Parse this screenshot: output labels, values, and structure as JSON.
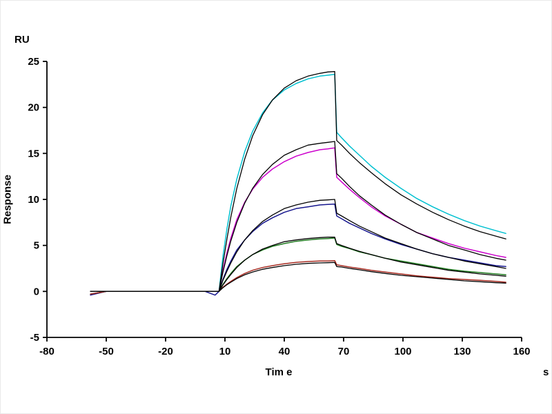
{
  "page": {
    "background": "#ffffff",
    "description_visible_text_only": true
  },
  "chart_data": {
    "type": "line",
    "title": "",
    "xlabel": "Tim e",
    "xunit": "s",
    "ylabel": "Response",
    "yunit": "RU",
    "xlim": [
      -80,
      160
    ],
    "ylim": [
      -5,
      25
    ],
    "x_ticks": [
      -80,
      -50,
      -20,
      10,
      40,
      70,
      100,
      130,
      160
    ],
    "y_ticks": [
      -5,
      0,
      5,
      10,
      15,
      20,
      25
    ],
    "grid": false,
    "legend": "none",
    "axis_color": "#000000",
    "time": [
      -58,
      -50,
      -40,
      -30,
      -20,
      -10,
      0,
      5,
      7,
      9,
      11,
      13,
      16,
      20,
      24,
      29,
      34,
      40,
      46,
      52,
      58,
      62,
      65.5,
      66.5,
      69,
      73,
      78,
      84,
      91,
      99,
      107,
      115,
      123,
      131,
      139,
      147,
      152
    ],
    "series": [
      {
        "name": "curve1-data",
        "role": "data",
        "color": "#00c0d0",
        "width": 1.5,
        "values": [
          -0.3,
          0,
          0,
          0,
          0,
          0,
          0,
          0,
          0,
          3.8,
          6.8,
          9.3,
          12.2,
          15.2,
          17.4,
          19.4,
          20.8,
          21.9,
          22.6,
          23.1,
          23.4,
          23.5,
          23.6,
          17.3,
          16.7,
          15.8,
          14.8,
          13.6,
          12.4,
          11.2,
          10.1,
          9.2,
          8.4,
          7.7,
          7.1,
          6.6,
          6.3
        ]
      },
      {
        "name": "curve2-data",
        "role": "data",
        "color": "#cc00cc",
        "width": 1.5,
        "values": [
          -0.3,
          0,
          0,
          0,
          0,
          0,
          0,
          0,
          0,
          2.3,
          4.2,
          5.8,
          7.8,
          9.7,
          11.1,
          12.4,
          13.3,
          14.1,
          14.7,
          15.1,
          15.4,
          15.5,
          15.6,
          12.4,
          11.9,
          11.1,
          10.2,
          9.2,
          8.2,
          7.3,
          6.4,
          5.8,
          5.2,
          4.7,
          4.3,
          3.9,
          3.7
        ]
      },
      {
        "name": "curve3-data",
        "role": "data",
        "color": "#16168e",
        "width": 1.5,
        "values": [
          -0.4,
          0,
          0,
          0,
          0,
          0,
          0,
          -0.4,
          0,
          1.3,
          2.4,
          3.3,
          4.5,
          5.6,
          6.5,
          7.4,
          8.0,
          8.6,
          9.0,
          9.2,
          9.4,
          9.45,
          9.5,
          8.2,
          7.9,
          7.4,
          6.9,
          6.3,
          5.7,
          5.1,
          4.6,
          4.1,
          3.7,
          3.4,
          3.1,
          2.8,
          2.7
        ]
      },
      {
        "name": "curve4-data",
        "role": "data",
        "color": "#1f7a1f",
        "width": 1.5,
        "values": [
          -0.3,
          0,
          0,
          0,
          0,
          0,
          0,
          0,
          0,
          0.75,
          1.4,
          1.95,
          2.7,
          3.4,
          4.0,
          4.5,
          4.9,
          5.2,
          5.45,
          5.6,
          5.7,
          5.75,
          5.8,
          5.1,
          4.9,
          4.65,
          4.3,
          4.0,
          3.6,
          3.3,
          3.0,
          2.7,
          2.4,
          2.2,
          2.05,
          1.9,
          1.8
        ]
      },
      {
        "name": "curve5-data",
        "role": "data",
        "color": "#a52a20",
        "width": 1.5,
        "values": [
          -0.3,
          0,
          0,
          0,
          0,
          0,
          0,
          0,
          0,
          0.45,
          0.8,
          1.1,
          1.5,
          1.95,
          2.3,
          2.6,
          2.8,
          3.0,
          3.15,
          3.25,
          3.3,
          3.3,
          3.35,
          2.9,
          2.8,
          2.65,
          2.5,
          2.3,
          2.1,
          1.9,
          1.7,
          1.55,
          1.4,
          1.3,
          1.2,
          1.1,
          1.0
        ]
      },
      {
        "name": "curve1-fit",
        "role": "fit",
        "color": "#000000",
        "width": 1.3,
        "values": [
          0,
          0,
          0,
          0,
          0,
          0,
          0,
          0,
          0,
          3.0,
          5.7,
          8.1,
          11.2,
          14.4,
          16.9,
          19.2,
          20.8,
          22.1,
          22.9,
          23.4,
          23.7,
          23.85,
          23.9,
          16.4,
          15.9,
          15.0,
          14.0,
          12.9,
          11.7,
          10.5,
          9.5,
          8.6,
          7.8,
          7.1,
          6.5,
          6.0,
          5.7
        ]
      },
      {
        "name": "curve2-fit",
        "role": "fit",
        "color": "#000000",
        "width": 1.3,
        "values": [
          0,
          0,
          0,
          0,
          0,
          0,
          0,
          0,
          0,
          2.1,
          3.9,
          5.5,
          7.5,
          9.6,
          11.2,
          12.7,
          13.8,
          14.8,
          15.4,
          15.9,
          16.1,
          16.2,
          16.3,
          12.8,
          12.3,
          11.4,
          10.4,
          9.4,
          8.3,
          7.3,
          6.4,
          5.7,
          5.0,
          4.5,
          4.0,
          3.6,
          3.4
        ]
      },
      {
        "name": "curve3-fit",
        "role": "fit",
        "color": "#000000",
        "width": 1.3,
        "values": [
          0,
          0,
          0,
          0,
          0,
          0,
          0,
          0,
          0,
          1.2,
          2.2,
          3.1,
          4.3,
          5.6,
          6.6,
          7.6,
          8.3,
          9.0,
          9.4,
          9.7,
          9.9,
          9.95,
          10.0,
          8.5,
          8.2,
          7.7,
          7.1,
          6.5,
          5.8,
          5.2,
          4.6,
          4.1,
          3.7,
          3.3,
          3.0,
          2.7,
          2.5
        ]
      },
      {
        "name": "curve4-fit",
        "role": "fit",
        "color": "#000000",
        "width": 1.3,
        "values": [
          0,
          0,
          0,
          0,
          0,
          0,
          0,
          0,
          0,
          0.7,
          1.3,
          1.85,
          2.6,
          3.4,
          4.0,
          4.6,
          5.0,
          5.4,
          5.6,
          5.75,
          5.85,
          5.9,
          5.9,
          5.2,
          5.0,
          4.7,
          4.35,
          4.0,
          3.6,
          3.2,
          2.9,
          2.6,
          2.3,
          2.1,
          1.9,
          1.75,
          1.65
        ]
      },
      {
        "name": "curve5-fit",
        "role": "fit",
        "color": "#000000",
        "width": 1.3,
        "values": [
          0,
          0,
          0,
          0,
          0,
          0,
          0,
          0,
          0,
          0.4,
          0.73,
          1.0,
          1.4,
          1.8,
          2.1,
          2.4,
          2.6,
          2.8,
          2.95,
          3.05,
          3.1,
          3.12,
          3.15,
          2.7,
          2.65,
          2.5,
          2.35,
          2.15,
          1.95,
          1.75,
          1.6,
          1.45,
          1.3,
          1.15,
          1.05,
          0.95,
          0.9
        ]
      }
    ]
  }
}
